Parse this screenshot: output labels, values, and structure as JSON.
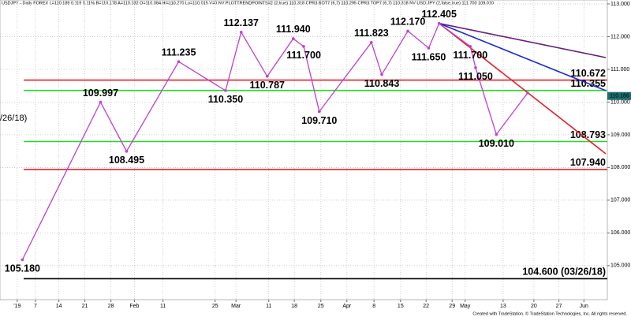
{
  "chart_data": {
    "type": "line",
    "header": "USDJPY - Daily  FOREX  L=110.189  0.119  0.11%  B=110.178  A=110.182  O=110.084  Hi=110.270  Lo=110.015  V=0  NV  PLOTTRENDPOINTS#2 (2,true)  110.318  CPR3 BOT7 (6,7)  110.295  CPR3 TOP7 (6,7)  110.318  NV USD JPY (2,false,true)  111.700  109.010",
    "footer": "Created with TradeStation. © TradeStation Technologies, Inc. All rights reserved.",
    "corner_label": "/26/18)",
    "xlim": [
      -3.3,
      113.3
    ],
    "ylim": [
      103.96,
      113.12
    ],
    "xticks": [
      {
        "value": 0,
        "label": "'19"
      },
      {
        "value": 3.5,
        "label": "7"
      },
      {
        "value": 8,
        "label": "14"
      },
      {
        "value": 13,
        "label": "21"
      },
      {
        "value": 18,
        "label": "28"
      },
      {
        "value": 22.5,
        "label": "Feb"
      },
      {
        "value": 28,
        "label": "11"
      },
      {
        "value": 38,
        "label": "25"
      },
      {
        "value": 42,
        "label": "Mar"
      },
      {
        "value": 48.3,
        "label": "11"
      },
      {
        "value": 53.2,
        "label": "18"
      },
      {
        "value": 58.3,
        "label": "25"
      },
      {
        "value": 63.3,
        "label": "Apr"
      },
      {
        "value": 68.5,
        "label": "8"
      },
      {
        "value": 73.6,
        "label": "15"
      },
      {
        "value": 78.5,
        "label": "22"
      },
      {
        "value": 83.5,
        "label": "29"
      },
      {
        "value": 86,
        "label": "May"
      },
      {
        "value": 93.3,
        "label": "13"
      },
      {
        "value": 99.2,
        "label": "20"
      },
      {
        "value": 104,
        "label": "27"
      },
      {
        "value": 108.8,
        "label": "Jun"
      }
    ],
    "yticks": [
      {
        "value": 105,
        "label": "105.000"
      },
      {
        "value": 106,
        "label": "106.000"
      },
      {
        "value": 107,
        "label": "107.000"
      },
      {
        "value": 108,
        "label": "108.000"
      },
      {
        "value": 109,
        "label": "109.000"
      },
      {
        "value": 110,
        "label": "110.000"
      },
      {
        "value": 111,
        "label": "111.000"
      },
      {
        "value": 112,
        "label": "112.000"
      },
      {
        "value": 113,
        "label": "113.000"
      }
    ],
    "grid": true,
    "series": [
      {
        "color": "#c040d0",
        "x": [
          1,
          16,
          21,
          31,
          40,
          43,
          48,
          53,
          55,
          58,
          68,
          70,
          75,
          79,
          81,
          87,
          88,
          92,
          98
        ],
        "values": [
          105.18,
          109.997,
          108.495,
          111.235,
          110.35,
          112.137,
          110.787,
          111.94,
          111.7,
          109.71,
          111.823,
          110.843,
          112.17,
          111.65,
          112.405,
          111.7,
          111.05,
          109.01,
          110.28
        ],
        "value_labels": [
          "105.180",
          "109.997",
          "108.495",
          "111.235",
          "110.350",
          "112.137",
          "110.787",
          "111.940",
          "111.700",
          "109.710",
          "111.823",
          "110.843",
          "112.170",
          "111.650",
          "112.405",
          "111.700",
          "111.050",
          "109.010",
          null
        ]
      }
    ],
    "levels": [
      {
        "value": 110.672,
        "label": "110.672",
        "color": "#e8202a"
      },
      {
        "value": 110.355,
        "label": "110.355",
        "color": "#22dd22"
      },
      {
        "value": 108.793,
        "label": "108.793",
        "color": "#22dd22"
      },
      {
        "value": 107.94,
        "label": "107.940",
        "color": "#e8202a"
      },
      {
        "value": 104.6,
        "label": "104.600 (03/26/18)",
        "color": "#000000"
      }
    ],
    "trendlines": [
      {
        "color": "#6a1d7a",
        "x": [
          81,
          113
        ],
        "values": [
          112.405,
          111.36
        ]
      },
      {
        "color": "#1a2ad8",
        "x": [
          81,
          113
        ],
        "values": [
          112.405,
          110.35
        ]
      },
      {
        "color": "#e8202a",
        "x": [
          81,
          113
        ],
        "values": [
          112.405,
          108.42
        ]
      }
    ],
    "last_price": {
      "value": 110.186,
      "label": "110.186",
      "color": "#1e6d6d"
    }
  }
}
